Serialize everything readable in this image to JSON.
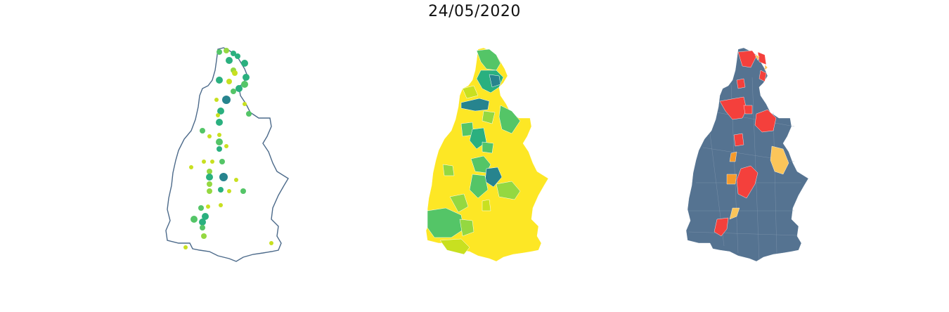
{
  "figure": {
    "title": "24/05/2020"
  },
  "colors": {
    "outline": "#4c6a8a",
    "viridis_teal": "#27848e",
    "viridis_green_dark": "#2ab07f",
    "viridis_green": "#54c567",
    "viridis_lime": "#94d841",
    "viridis_yellowgreen": "#c8e020",
    "viridis_yellow": "#fde725",
    "risk_base": "#557391",
    "risk_red": "#f4403c",
    "risk_orange": "#f59a2a",
    "risk_amber": "#fbc55a"
  },
  "maps": [
    {
      "type": "bubble-map",
      "fill": "none"
    },
    {
      "type": "choropleth",
      "fill": "#fde725"
    },
    {
      "type": "choropleth",
      "fill": "#557391"
    }
  ]
}
